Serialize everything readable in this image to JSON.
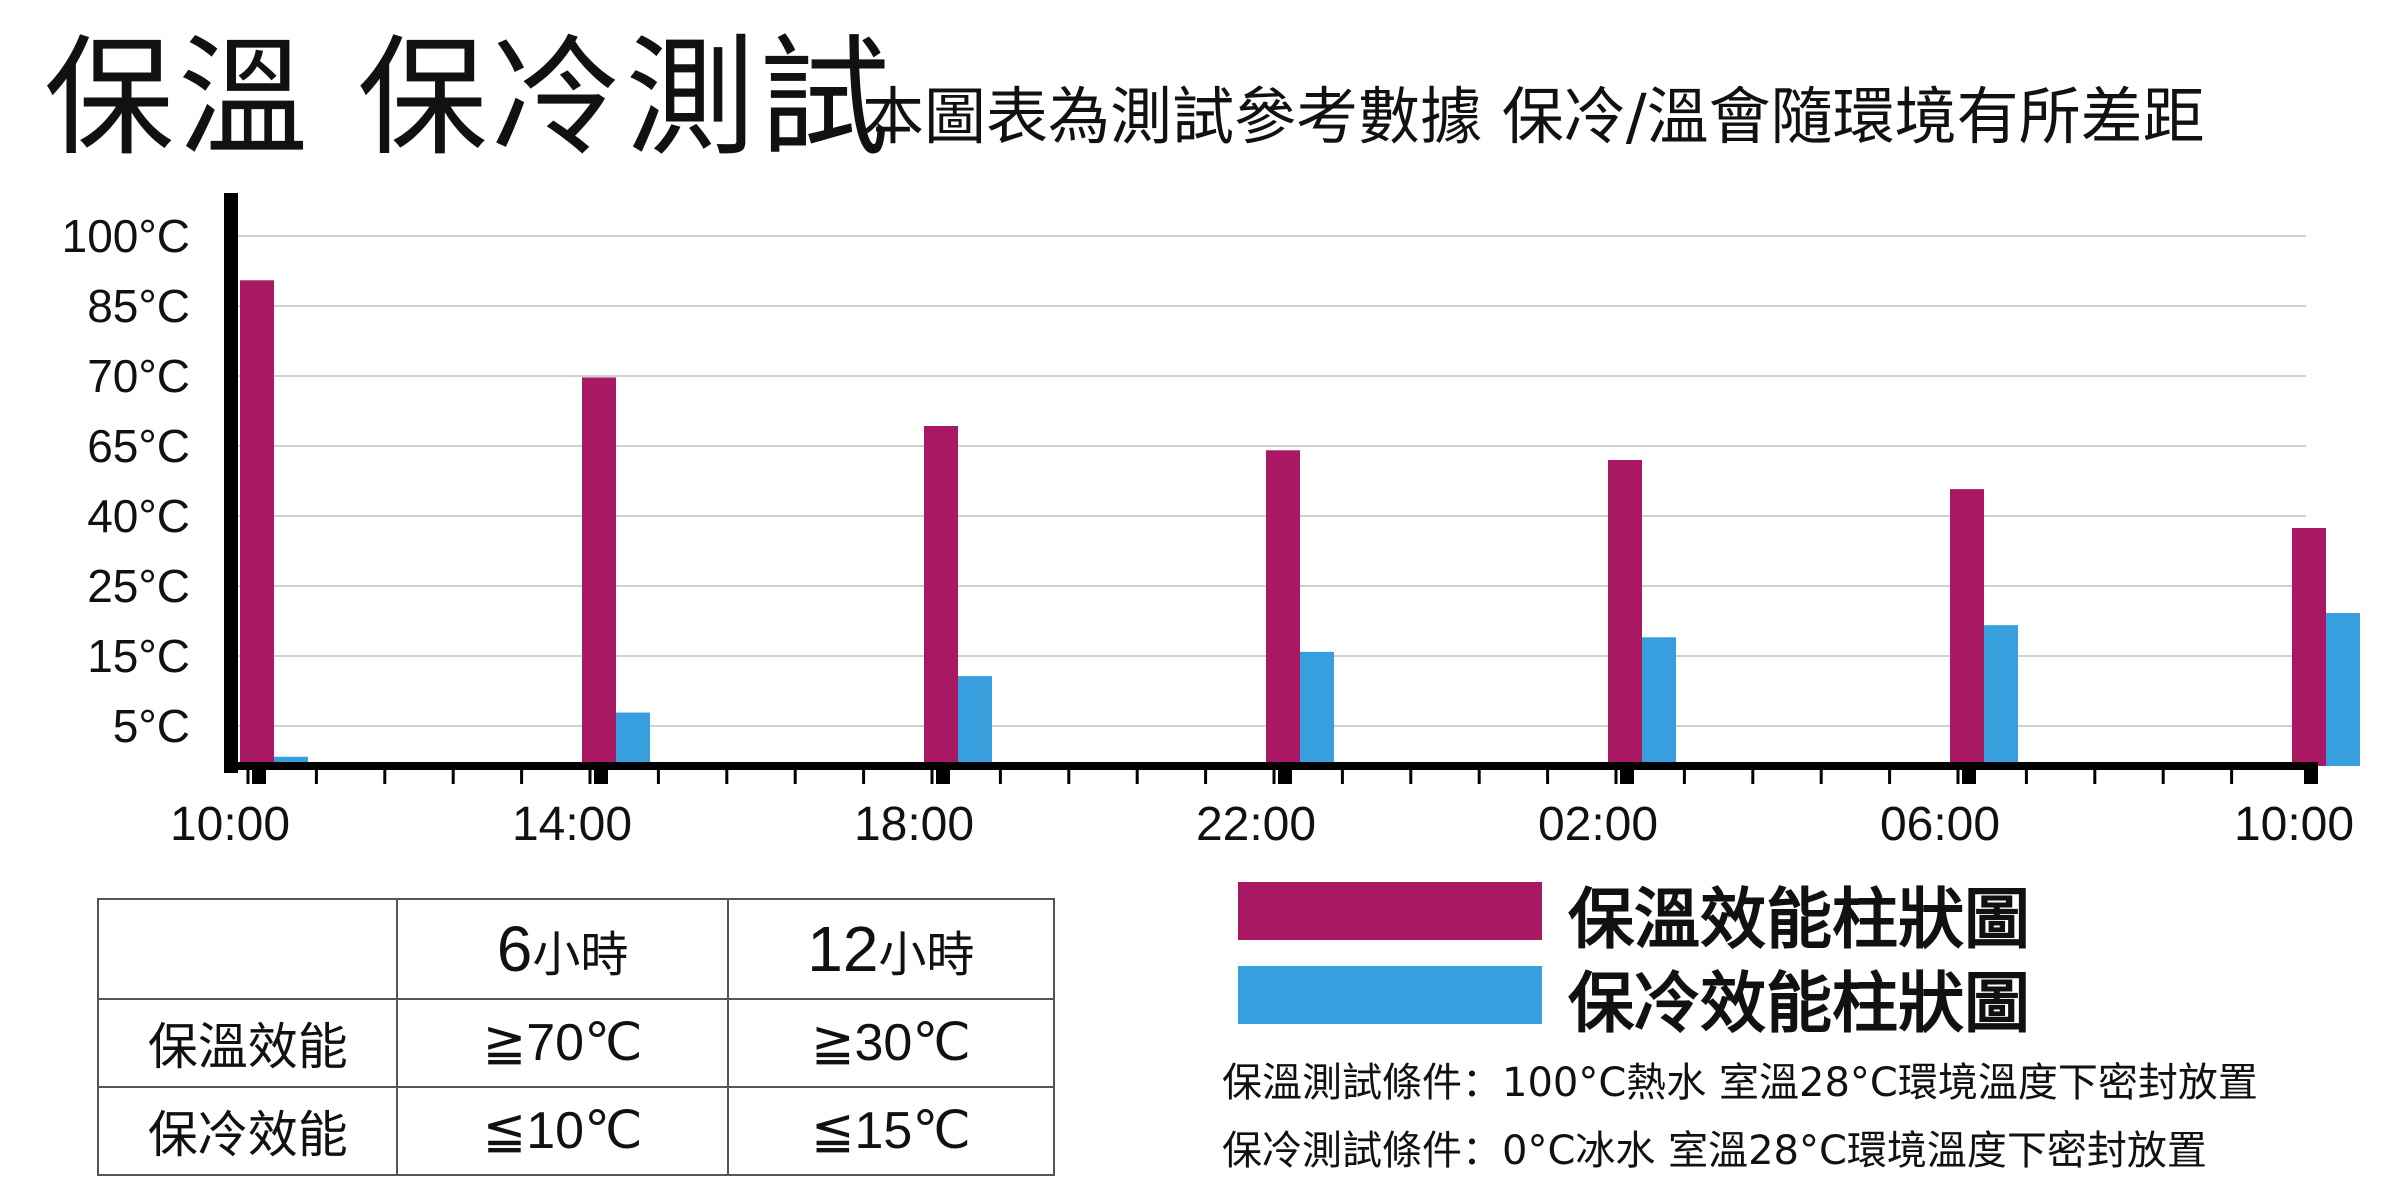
{
  "title": "保溫  保冷測試",
  "subtitle": "本圖表為測試參考數據 保冷/溫會隨環境有所差距",
  "chart_data": {
    "type": "bar",
    "categories": [
      "10:00",
      "14:00",
      "18:00",
      "22:00",
      "02:00",
      "06:00",
      "10:00"
    ],
    "y_tick_labels": [
      "100°C",
      "85°C",
      "70°C",
      "65°C",
      "40°C",
      "25°C",
      "15°C",
      "5°C"
    ],
    "series": [
      {
        "name": "保溫效能柱狀圖",
        "color": "#a81863",
        "values": [
          100,
          80,
          70,
          65,
          63,
          57,
          49
        ]
      },
      {
        "name": "保冷效能柱狀圖",
        "color": "#389fdf",
        "values": [
          1.9,
          11,
          18.5,
          23.5,
          26.5,
          29,
          31.5
        ]
      }
    ],
    "note": "The y-axis tick labels are non-uniform; bar values are estimated in the visual index space of the labeled gridlines.",
    "ylim": [
      0,
      112
    ],
    "grid": true,
    "legend_position": "bottom-right"
  },
  "table": {
    "headers": [
      {
        "num": "",
        "unit": ""
      },
      {
        "num": "6",
        "unit": "小時"
      },
      {
        "num": "12",
        "unit": "小時"
      }
    ],
    "rows": [
      {
        "label": "保溫效能",
        "cells": [
          "≧70℃",
          "≧30℃"
        ]
      },
      {
        "label": "保冷效能",
        "cells": [
          "≦10℃",
          "≦15℃"
        ]
      }
    ]
  },
  "legend": {
    "items": [
      {
        "label": "保溫效能柱狀圖",
        "color": "#a81863"
      },
      {
        "label": "保冷效能柱狀圖",
        "color": "#389fdf"
      }
    ]
  },
  "notes": [
    "保溫測試條件：100°C熱水  室溫28°C環境溫度下密封放置",
    "保冷測試條件：0°C冰水  室溫28°C環境溫度下密封放置"
  ]
}
